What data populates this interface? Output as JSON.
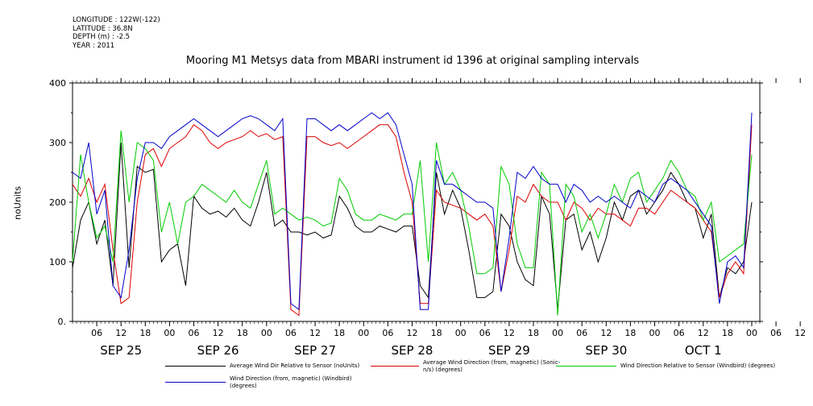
{
  "meta": {
    "longitude": "LONGITUDE : 122W(-122)",
    "latitude": "LATITUDE : 36.8N",
    "depth": "DEPTH (m) : -2.5",
    "year": "YEAR : 2011"
  },
  "chart_data": {
    "type": "line",
    "title": "Mooring M1 Metsys data from MBARI instrument id 1396 at original sampling intervals",
    "ylabel": "noUnits",
    "ylim": [
      0,
      400
    ],
    "yticks": [
      "0.",
      "100",
      "200",
      "300",
      "400"
    ],
    "x_hour_ticks": [
      "06",
      "12",
      "18",
      "00",
      "06",
      "12",
      "18",
      "00",
      "06",
      "12",
      "18",
      "00",
      "06",
      "12",
      "18",
      "00",
      "06",
      "12",
      "18",
      "00",
      "06",
      "12",
      "18",
      "00",
      "06",
      "12",
      "18",
      "00",
      "06",
      "12",
      "18"
    ],
    "x_day_labels": [
      "SEP 25",
      "SEP 26",
      "SEP 27",
      "SEP 28",
      "SEP 29",
      "SEP 30",
      "OCT  1"
    ],
    "xlim_hours": [
      0,
      170
    ],
    "x_hours": [
      0,
      2,
      4,
      6,
      8,
      10,
      12,
      14,
      16,
      18,
      20,
      22,
      24,
      26,
      28,
      30,
      32,
      34,
      36,
      38,
      40,
      42,
      44,
      46,
      48,
      50,
      52,
      54,
      56,
      58,
      60,
      62,
      64,
      66,
      68,
      70,
      72,
      74,
      76,
      78,
      80,
      82,
      84,
      86,
      88,
      90,
      92,
      94,
      96,
      98,
      100,
      102,
      104,
      106,
      108,
      110,
      112,
      114,
      116,
      118,
      120,
      122,
      124,
      126,
      128,
      130,
      132,
      134,
      136,
      138,
      140,
      142,
      144,
      146,
      148,
      150,
      152,
      154,
      156,
      158,
      160,
      162,
      164,
      166,
      168
    ],
    "series": [
      {
        "name": "Average Wind Dir Relative to Sensor (noUnits)",
        "color": "#000000",
        "values": [
          90,
          170,
          200,
          130,
          170,
          60,
          300,
          90,
          260,
          250,
          255,
          100,
          120,
          130,
          60,
          210,
          190,
          180,
          185,
          175,
          190,
          170,
          160,
          200,
          250,
          160,
          170,
          150,
          150,
          145,
          150,
          140,
          145,
          210,
          190,
          160,
          150,
          150,
          160,
          155,
          150,
          160,
          160,
          60,
          40,
          250,
          180,
          220,
          190,
          120,
          40,
          40,
          50,
          180,
          160,
          100,
          70,
          60,
          210,
          180,
          20,
          170,
          180,
          120,
          150,
          100,
          140,
          200,
          170,
          210,
          220,
          180,
          200,
          220,
          250,
          230,
          200,
          190,
          140,
          180,
          40,
          90,
          80,
          100,
          200
        ]
      },
      {
        "name": "Average Wind Direction (from, magnetic) (Sonic-n/s) (degrees)",
        "color": "#dd0000",
        "values": [
          230,
          210,
          240,
          200,
          230,
          120,
          30,
          40,
          200,
          280,
          290,
          260,
          290,
          300,
          310,
          330,
          320,
          300,
          290,
          300,
          305,
          310,
          320,
          310,
          315,
          305,
          310,
          20,
          10,
          310,
          310,
          300,
          295,
          300,
          290,
          300,
          310,
          320,
          330,
          330,
          310,
          250,
          200,
          30,
          30,
          220,
          200,
          195,
          190,
          180,
          170,
          180,
          160,
          50,
          120,
          210,
          200,
          230,
          210,
          200,
          200,
          170,
          200,
          190,
          170,
          190,
          180,
          180,
          170,
          160,
          190,
          190,
          180,
          200,
          220,
          210,
          200,
          190,
          170,
          150,
          40,
          80,
          100,
          80,
          330
        ]
      },
      {
        "name": "Wind Direction Relative to Sensor (Windbird) (degrees)",
        "color": "#00cc00",
        "values": [
          100,
          280,
          200,
          140,
          160,
          100,
          320,
          200,
          300,
          290,
          270,
          150,
          200,
          130,
          200,
          210,
          230,
          220,
          210,
          200,
          220,
          200,
          190,
          230,
          270,
          180,
          190,
          180,
          170,
          175,
          170,
          160,
          165,
          240,
          220,
          180,
          170,
          170,
          180,
          175,
          170,
          180,
          180,
          270,
          100,
          300,
          230,
          250,
          220,
          160,
          80,
          80,
          90,
          260,
          230,
          130,
          90,
          90,
          250,
          230,
          10,
          230,
          210,
          150,
          180,
          140,
          180,
          230,
          200,
          240,
          250,
          200,
          220,
          240,
          270,
          250,
          220,
          210,
          170,
          200,
          100,
          110,
          120,
          130,
          280
        ]
      },
      {
        "name": "Wind Direction (from, magnetic) (Windbird) (degrees)",
        "color": "#0000cc",
        "values": [
          250,
          240,
          300,
          180,
          220,
          60,
          40,
          120,
          240,
          300,
          300,
          290,
          310,
          320,
          330,
          340,
          330,
          320,
          310,
          320,
          330,
          340,
          345,
          340,
          330,
          320,
          340,
          30,
          20,
          340,
          340,
          330,
          320,
          330,
          320,
          330,
          340,
          350,
          340,
          350,
          330,
          280,
          230,
          20,
          20,
          270,
          230,
          230,
          220,
          210,
          200,
          200,
          190,
          50,
          140,
          250,
          240,
          260,
          240,
          230,
          230,
          200,
          230,
          220,
          200,
          210,
          200,
          210,
          200,
          190,
          220,
          210,
          200,
          230,
          240,
          230,
          220,
          200,
          180,
          160,
          30,
          100,
          110,
          90,
          350
        ]
      }
    ],
    "legend_placement": "bottom"
  }
}
